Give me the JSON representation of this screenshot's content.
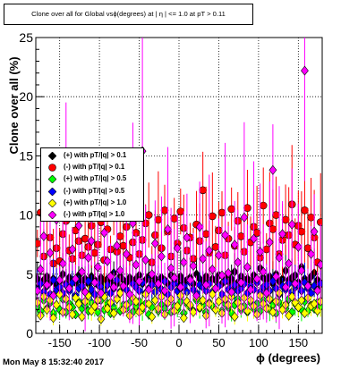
{
  "timestamp": "Mon May  8 15:32:40 2017",
  "chart_data": {
    "type": "scatter",
    "title": "Clone  over all for Global vsϕ(degrees) at | η | <= 1.0 at pT > 0.11",
    "xlabel": "ϕ (degrees)",
    "ylabel": "Clone  over all (%)",
    "xlim": [
      -180,
      180
    ],
    "ylim": [
      0,
      25
    ],
    "xticks": [
      "-150",
      "-100",
      "-50",
      "0",
      "50",
      "100",
      "150"
    ],
    "yticks": [
      "0",
      "5",
      "10",
      "15",
      "20",
      "25"
    ],
    "grid": true,
    "legend_position": "left",
    "colors": {
      "pos_01": "#000000",
      "neg_01": "#ff0000",
      "pos_05": "#00ff00",
      "neg_05": "#0000ff",
      "pos_10": "#ffff00",
      "neg_10": "#ff00ff"
    },
    "series": [
      {
        "name": "(+) with pT/|q| > 0.1",
        "color_key": "pos_01",
        "marker": "diamond",
        "values": [
          4.6,
          4.2,
          4.5,
          4.8,
          4.3,
          4.6,
          4.1,
          4.4,
          5.0,
          4.2,
          4.7,
          4.5,
          4.3,
          4.9,
          4.4,
          4.6,
          4.2,
          4.8,
          4.5,
          4.1,
          4.7,
          4.3,
          4.6,
          4.4,
          5.1,
          4.2,
          4.8,
          4.5,
          4.3,
          4.7,
          4.4,
          4.6,
          4.9,
          4.2,
          4.5,
          4.8,
          4.3,
          4.6,
          4.4,
          4.7,
          4.5,
          4.2,
          4.9,
          4.6,
          4.3,
          4.8,
          4.4,
          4.5,
          4.7,
          4.2,
          5.0,
          4.6,
          4.4,
          4.8,
          4.3,
          4.6,
          4.5,
          4.9,
          4.2,
          4.7,
          4.4,
          4.6,
          5.2,
          4.3,
          4.8,
          4.5,
          4.6,
          4.4,
          4.9,
          4.3,
          5.5,
          4.7,
          4.5,
          4.8,
          4.2,
          5.0,
          4.4,
          4.6,
          5.3,
          4.5,
          4.7,
          4.9,
          4.3,
          5.6,
          4.6,
          4.4,
          4.8,
          5.1,
          4.5,
          4.2
        ]
      },
      {
        "name": "(-) with pT/|q| > 0.1",
        "color_key": "neg_01",
        "marker": "circle",
        "values": [
          7.6,
          10.2,
          6.5,
          9.8,
          8.1,
          5.9,
          7.2,
          6.1,
          8.4,
          9.5,
          7.0,
          6.3,
          8.7,
          7.8,
          6.6,
          8.0,
          7.3,
          9.1,
          6.8,
          7.5,
          9.4,
          6.2,
          8.8,
          7.1,
          10.1,
          6.9,
          8.2,
          7.4,
          9.0,
          6.4,
          7.7,
          8.5,
          6.7,
          7.9,
          9.3,
          10.0,
          6.0,
          8.3,
          9.6,
          7.2,
          10.4,
          8.6,
          6.5,
          9.7,
          7.6,
          10.3,
          8.9,
          7.0,
          8.1,
          6.3,
          9.2,
          7.8,
          12.1,
          8.4,
          6.8,
          9.9,
          7.3,
          8.7,
          10.2,
          6.6,
          8.0,
          10.5,
          7.4,
          9.5,
          8.2,
          6.9,
          10.6,
          7.7,
          9.0,
          8.5,
          6.4,
          10.8,
          7.1,
          9.3,
          8.8,
          10.0,
          6.7,
          7.9,
          9.6,
          8.3,
          10.9,
          7.5,
          9.1,
          8.6,
          10.4,
          7.2,
          9.8,
          8.1,
          6.0,
          9.4
        ]
      },
      {
        "name": "(+) with pT/|q| > 0.5",
        "color_key": "pos_05",
        "marker": "diamond",
        "values": [
          2.3,
          1.9,
          2.8,
          2.1,
          2.6,
          1.7,
          2.4,
          2.0,
          2.9,
          1.8,
          2.5,
          2.2,
          1.6,
          2.7,
          2.1,
          2.4,
          1.9,
          2.6,
          2.3,
          1.8,
          2.8,
          2.0,
          2.5,
          1.7,
          2.2,
          2.9,
          1.9,
          2.4,
          2.1,
          2.6,
          1.8,
          2.3,
          2.7,
          2.0,
          2.5,
          1.6,
          2.2,
          2.8,
          1.9,
          2.4,
          2.1,
          2.6,
          1.8,
          2.3,
          2.0,
          2.7,
          1.7,
          2.5,
          2.2,
          1.9,
          2.8,
          2.1,
          2.4,
          1.8,
          2.6,
          2.3,
          2.0,
          2.7,
          1.9,
          2.5,
          2.2,
          1.7,
          2.4,
          2.9,
          2.0,
          2.3,
          1.8,
          2.6,
          2.1,
          2.5,
          1.9,
          2.8,
          2.2,
          2.0,
          2.4,
          1.7,
          2.6,
          2.3,
          2.1,
          2.9,
          1.8,
          2.5,
          2.2,
          2.0,
          2.7,
          1.9,
          2.4,
          2.1,
          2.6,
          2.3
        ]
      },
      {
        "name": "(-) with pT/|q| > 0.5",
        "color_key": "neg_05",
        "marker": "diamond",
        "values": [
          3.8,
          4.2,
          3.5,
          4.0,
          3.3,
          4.5,
          3.7,
          3.9,
          3.4,
          4.1,
          3.6,
          4.3,
          3.2,
          3.8,
          4.0,
          3.5,
          4.4,
          3.7,
          3.3,
          4.2,
          3.9,
          3.6,
          4.1,
          3.4,
          3.8,
          4.5,
          3.5,
          4.0,
          3.7,
          3.3,
          4.2,
          3.9,
          3.6,
          4.3,
          3.4,
          3.8,
          4.1,
          3.5,
          4.0,
          3.7,
          4.4,
          3.3,
          3.9,
          4.2,
          3.6,
          3.8,
          4.0,
          3.5,
          4.3,
          3.7,
          3.4,
          4.1,
          3.9,
          3.6,
          4.2,
          3.5,
          3.8,
          4.0,
          3.3,
          4.4,
          3.7,
          3.9,
          4.1,
          3.6,
          3.8,
          4.2,
          3.4,
          4.0,
          3.7,
          4.3,
          3.5,
          3.9,
          4.1,
          3.6,
          4.4,
          3.8,
          3.3,
          4.0,
          3.7,
          4.2,
          3.5,
          3.9,
          4.1,
          3.6,
          4.3,
          3.8,
          3.4,
          4.0,
          3.7,
          4.2
        ]
      },
      {
        "name": "(+) with pT/|q| > 1.0",
        "color_key": "pos_10",
        "marker": "diamond",
        "values": [
          2.6,
          1.5,
          3.1,
          2.0,
          2.8,
          1.3,
          2.4,
          3.3,
          1.8,
          2.9,
          2.2,
          1.6,
          3.0,
          2.5,
          1.4,
          2.7,
          3.2,
          1.9,
          2.3,
          2.8,
          1.2,
          3.1,
          2.1,
          2.6,
          1.7,
          2.9,
          3.4,
          2.0,
          2.4,
          1.5,
          3.0,
          2.7,
          1.8,
          2.2,
          3.3,
          2.5,
          1.4,
          2.8,
          2.1,
          3.1,
          1.6,
          2.6,
          2.9,
          1.9,
          2.3,
          3.2,
          1.3,
          2.7,
          2.4,
          1.8,
          3.0,
          2.2,
          2.8,
          1.5,
          2.5,
          3.3,
          2.0,
          2.7,
          1.7,
          2.9,
          2.4,
          3.1,
          1.4,
          2.6,
          2.2,
          3.0,
          1.9,
          2.8,
          2.3,
          1.6,
          3.2,
          2.5,
          2.1,
          2.9,
          1.8,
          2.7,
          3.4,
          2.0,
          2.4,
          1.5,
          3.1,
          2.6,
          2.2,
          2.8,
          1.7,
          3.0,
          2.3,
          2.5,
          1.9,
          2.7
        ]
      },
      {
        "name": "(-) with pT/|q| > 1.0",
        "color_key": "neg_10",
        "marker": "diamond",
        "values": [
          3.6,
          5.4,
          8.2,
          4.1,
          6.8,
          3.2,
          9.6,
          4.5,
          5.9,
          10.5,
          3.8,
          7.1,
          4.6,
          9.1,
          5.2,
          3.5,
          6.4,
          7.8,
          4.3,
          5.6,
          3.4,
          8.5,
          6.1,
          4.8,
          3.9,
          7.4,
          5.3,
          4.0,
          6.7,
          3.3,
          9.3,
          5.8,
          4.4,
          15.4,
          6.2,
          3.7,
          5.0,
          7.6,
          4.2,
          6.5,
          3.6,
          8.8,
          5.5,
          4.7,
          7.2,
          3.9,
          6.0,
          8.1,
          4.5,
          5.7,
          3.2,
          9.0,
          6.3,
          4.1,
          7.0,
          5.4,
          3.8,
          6.6,
          4.9,
          8.3,
          5.1,
          3.5,
          7.5,
          6.0,
          4.3,
          9.8,
          5.6,
          3.7,
          8.0,
          4.6,
          6.9,
          5.2,
          3.4,
          7.7,
          13.8,
          4.8,
          6.4,
          8.4,
          3.9,
          5.9,
          9.2,
          4.2,
          7.3,
          5.3,
          22.2,
          4.0,
          6.7,
          8.6,
          3.6,
          5.8
        ]
      }
    ],
    "x": [
      -178,
      -174,
      -170,
      -166,
      -162,
      -158,
      -154,
      -150,
      -146,
      -142,
      -138,
      -134,
      -130,
      -126,
      -122,
      -118,
      -114,
      -110,
      -106,
      -102,
      -98,
      -94,
      -90,
      -86,
      -82,
      -78,
      -74,
      -70,
      -66,
      -62,
      -58,
      -54,
      -50,
      -46,
      -42,
      -38,
      -34,
      -30,
      -26,
      -22,
      -18,
      -14,
      -10,
      -6,
      -2,
      2,
      6,
      10,
      14,
      18,
      22,
      26,
      30,
      34,
      38,
      42,
      46,
      50,
      54,
      58,
      62,
      66,
      70,
      74,
      78,
      82,
      86,
      90,
      94,
      98,
      102,
      106,
      110,
      114,
      118,
      122,
      126,
      130,
      134,
      138,
      142,
      146,
      150,
      154,
      158,
      162,
      166,
      170,
      174,
      178
    ]
  }
}
